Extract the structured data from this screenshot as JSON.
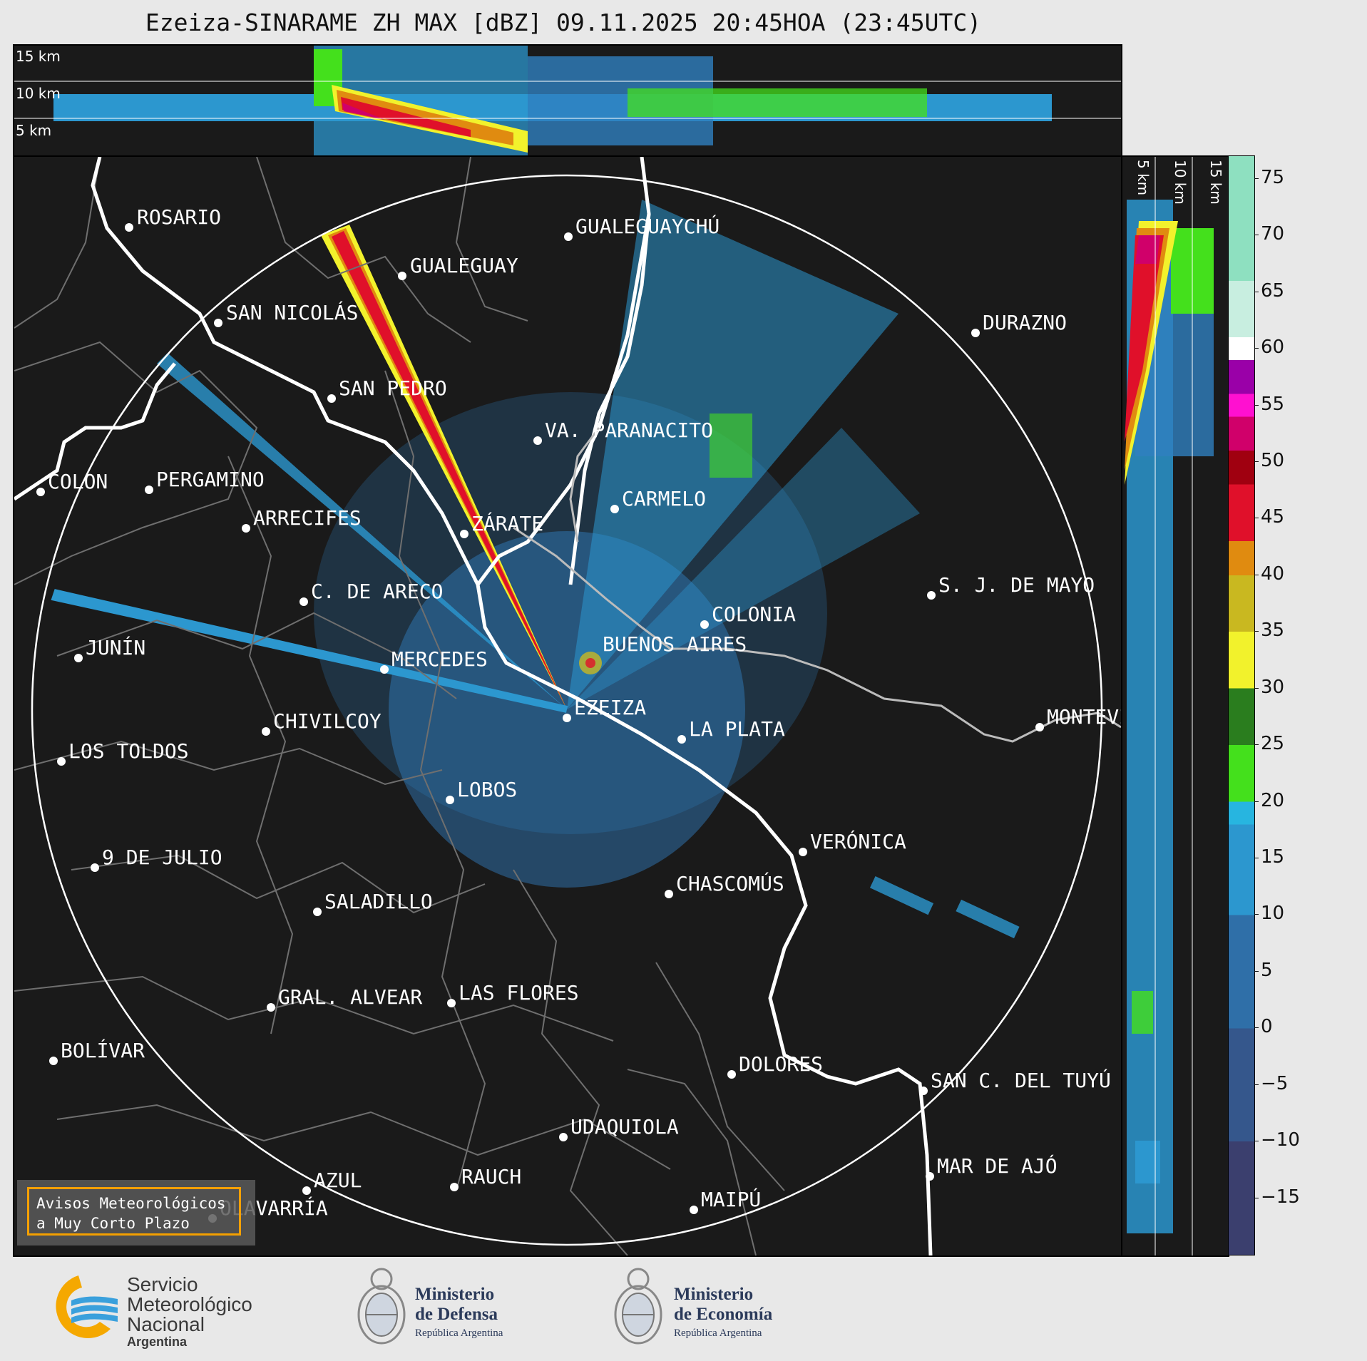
{
  "title": "Ezeiza-SINARAME ZH MAX [dBZ] 09.11.2025 20:45HOA (23:45UTC)",
  "height_labels": [
    "15 km",
    "10 km",
    "5 km"
  ],
  "cities": [
    {
      "name": "ROSARIO"
    },
    {
      "name": "GUALEGUAYCHÚ"
    },
    {
      "name": "GUALEGUAY"
    },
    {
      "name": "SAN NICOLÁS"
    },
    {
      "name": "DURAZNO"
    },
    {
      "name": "SAN PEDRO"
    },
    {
      "name": "VA. PARANACITO"
    },
    {
      "name": "COLON"
    },
    {
      "name": "PERGAMINO"
    },
    {
      "name": "CARMELO"
    },
    {
      "name": "ARRECIFES"
    },
    {
      "name": "ZÁRATE"
    },
    {
      "name": "S. J. DE MAYO"
    },
    {
      "name": "C. DE ARECO"
    },
    {
      "name": "COLONIA"
    },
    {
      "name": "JUNÍN"
    },
    {
      "name": "BUENOS AIRES"
    },
    {
      "name": "MERCEDES"
    },
    {
      "name": "EZEIZA"
    },
    {
      "name": "MONTEVIDEO"
    },
    {
      "name": "CHIVILCOY"
    },
    {
      "name": "LA PLATA"
    },
    {
      "name": "LOS TOLDOS"
    },
    {
      "name": "LOBOS"
    },
    {
      "name": "VERÓNICA"
    },
    {
      "name": "9 DE JULIO"
    },
    {
      "name": "CHASCOMÚS"
    },
    {
      "name": "SALADILLO"
    },
    {
      "name": "GRAL. ALVEAR"
    },
    {
      "name": "LAS FLORES"
    },
    {
      "name": "BOLÍVAR"
    },
    {
      "name": "DOLORES"
    },
    {
      "name": "SAN C. DEL TUYÚ"
    },
    {
      "name": "UDAQUIOLA"
    },
    {
      "name": "MAR DE AJÓ"
    },
    {
      "name": "AZUL"
    },
    {
      "name": "RAUCH"
    },
    {
      "name": "OLAVARRÍA"
    },
    {
      "name": "MAIPÚ"
    }
  ],
  "colorbar": {
    "unit": "dBZ",
    "min": -20,
    "max": 77,
    "ticks": [
      "75",
      "70",
      "65",
      "60",
      "55",
      "50",
      "45",
      "40",
      "35",
      "30",
      "25",
      "20",
      "15",
      "10",
      "5",
      "0",
      "−5",
      "−10",
      "−15"
    ],
    "colors": [
      {
        "from": -20,
        "to": -10,
        "color": "#3b3f6e"
      },
      {
        "from": -10,
        "to": 0,
        "color": "#35578c"
      },
      {
        "from": 0,
        "to": 10,
        "color": "#2f6fa8"
      },
      {
        "from": 10,
        "to": 18,
        "color": "#2c97cf"
      },
      {
        "from": 18,
        "to": 20,
        "color": "#27b5e0"
      },
      {
        "from": 20,
        "to": 25,
        "color": "#44e01c"
      },
      {
        "from": 25,
        "to": 30,
        "color": "#2a7d1e"
      },
      {
        "from": 30,
        "to": 35,
        "color": "#f2f22c"
      },
      {
        "from": 35,
        "to": 40,
        "color": "#c9b820"
      },
      {
        "from": 40,
        "to": 43,
        "color": "#e08b10"
      },
      {
        "from": 43,
        "to": 48,
        "color": "#e0102a"
      },
      {
        "from": 48,
        "to": 51,
        "color": "#a00010"
      },
      {
        "from": 51,
        "to": 54,
        "color": "#d0006a"
      },
      {
        "from": 54,
        "to": 56,
        "color": "#ff10d0"
      },
      {
        "from": 56,
        "to": 59,
        "color": "#9a00a8"
      },
      {
        "from": 59,
        "to": 61,
        "color": "#ffffff"
      },
      {
        "from": 61,
        "to": 66,
        "color": "#c8eee0"
      },
      {
        "from": 66,
        "to": 77,
        "color": "#8ee0c0"
      }
    ]
  },
  "warning_box": {
    "line1": "Avisos Meteorológicos",
    "line2": "a Muy Corto Plazo"
  },
  "footer": {
    "smn": {
      "line1": "Servicio",
      "line2": "Meteorológico",
      "line3": "Nacional",
      "line4": "Argentina"
    },
    "defensa": {
      "line1": "Ministerio",
      "line2": "de Defensa",
      "line3": "República Argentina"
    },
    "economia": {
      "line1": "Ministerio",
      "line2": "de Economía",
      "line3": "República Argentina"
    }
  }
}
